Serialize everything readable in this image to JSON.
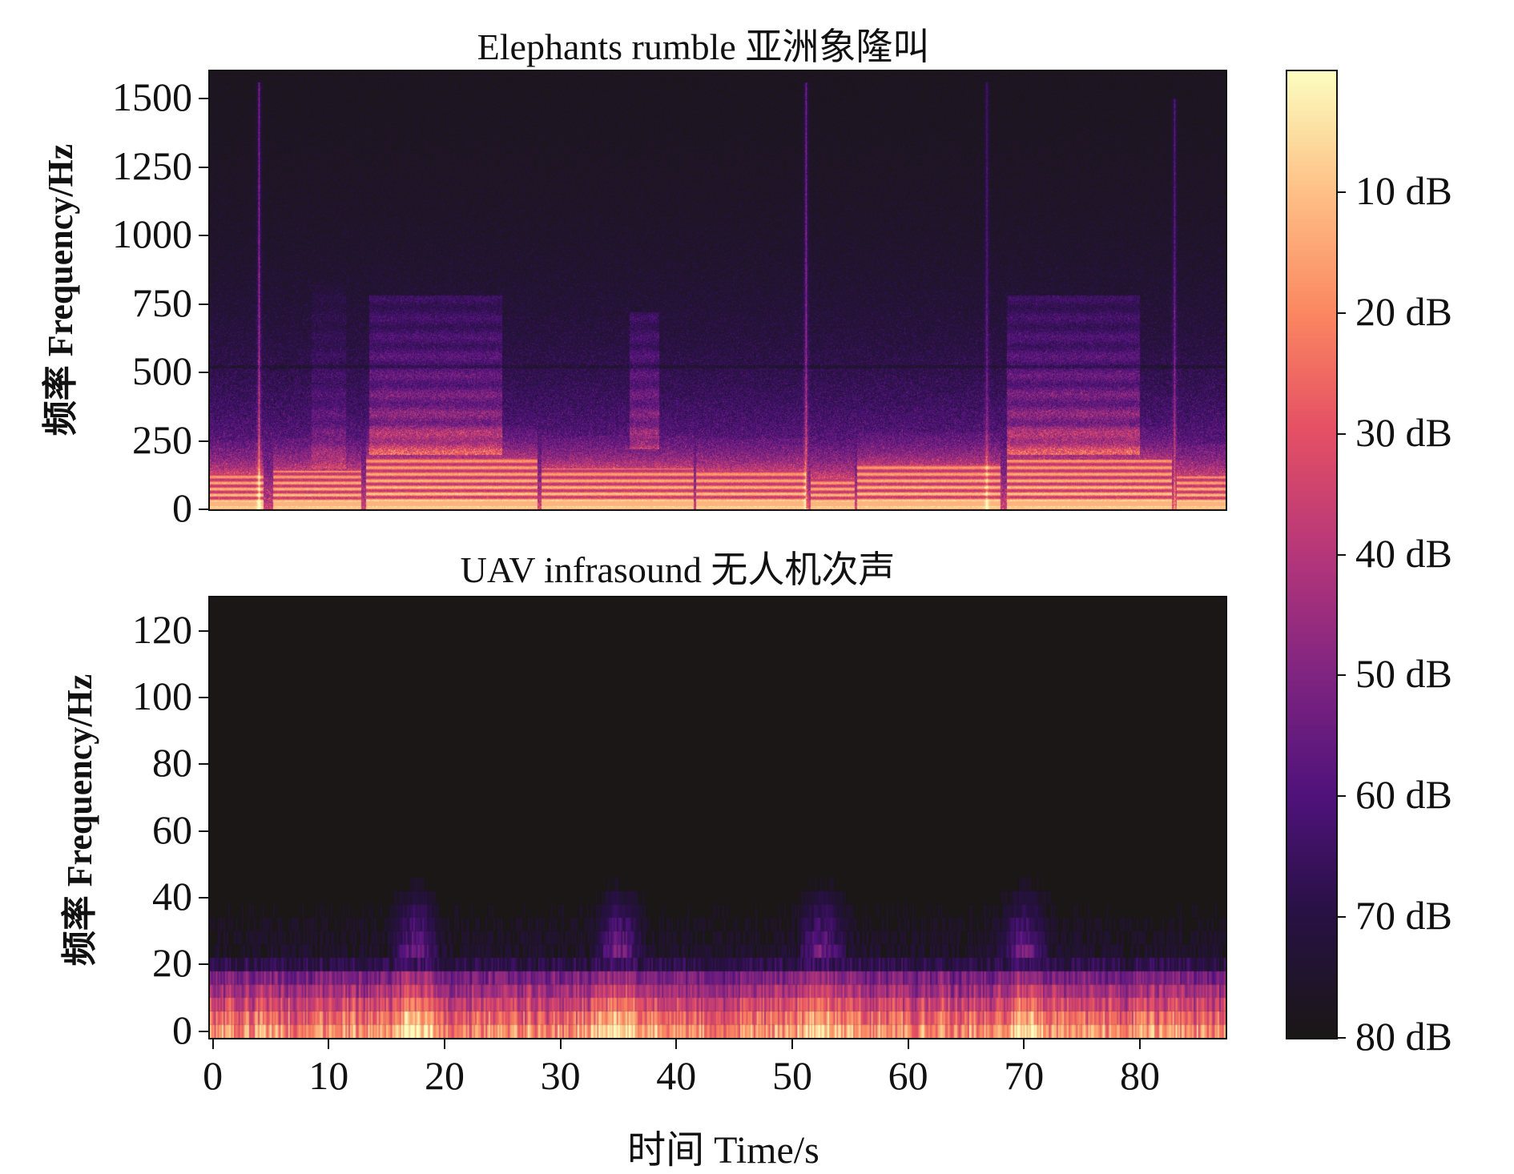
{
  "chart_data": [
    {
      "type": "heatmap",
      "title": "Elephants rumble 亚洲象隆叫",
      "ylabel": "频率 Frequency/Hz",
      "xlim": [
        -0.25,
        87.4
      ],
      "ylim": [
        0,
        1600
      ],
      "yticks": [
        0,
        250,
        500,
        750,
        1000,
        1250,
        1500
      ],
      "yticklabels": [
        "0",
        "250",
        "500",
        "750",
        "1000",
        "1250",
        "1500"
      ],
      "colormap": "magma",
      "calls": [
        {
          "start": -0.25,
          "end": 4.4,
          "fmax": 130,
          "spacing": 22
        },
        {
          "start": 5.2,
          "end": 12.8,
          "fmax": 140,
          "spacing": 22
        },
        {
          "start": 13.2,
          "end": 28.0,
          "fmax": 185,
          "spacing": 24
        },
        {
          "start": 28.4,
          "end": 41.5,
          "fmax": 150,
          "spacing": 24
        },
        {
          "start": 41.7,
          "end": 51.2,
          "fmax": 140,
          "spacing": 24
        },
        {
          "start": 51.6,
          "end": 55.4,
          "fmax": 110,
          "spacing": 22
        },
        {
          "start": 55.6,
          "end": 68.0,
          "fmax": 160,
          "spacing": 24
        },
        {
          "start": 68.5,
          "end": 82.8,
          "fmax": 180,
          "spacing": 24
        },
        {
          "start": 83.2,
          "end": 87.4,
          "fmax": 120,
          "spacing": 22
        }
      ],
      "formants": [
        {
          "t": [
            13.5,
            25
          ],
          "f": [
            200,
            780
          ],
          "level": 0.35
        },
        {
          "t": [
            36,
            38.5
          ],
          "f": [
            220,
            720
          ],
          "level": 0.3
        },
        {
          "t": [
            68.5,
            80
          ],
          "f": [
            200,
            780
          ],
          "level": 0.35
        },
        {
          "t": [
            8.5,
            11.5
          ],
          "f": [
            150,
            820
          ],
          "level": 0.15
        }
      ],
      "clicks": [
        {
          "t": 4.0,
          "fmax": 1560,
          "level": 0.45
        },
        {
          "t": 51.2,
          "fmax": 1560,
          "level": 0.45
        },
        {
          "t": 66.8,
          "fmax": 1560,
          "level": 0.3
        },
        {
          "t": 83.0,
          "fmax": 1500,
          "level": 0.35
        }
      ]
    },
    {
      "type": "heatmap",
      "title": "UAV infrasound 无人机次声",
      "ylabel": "频率 Frequency/Hz",
      "xlabel": "时间 Time/s",
      "xlim": [
        -0.25,
        87.4
      ],
      "ylim": [
        -2,
        130
      ],
      "yticks": [
        0,
        20,
        40,
        60,
        80,
        100,
        120
      ],
      "yticklabels": [
        "0",
        "20",
        "40",
        "60",
        "80",
        "100",
        "120"
      ],
      "xticks": [
        0,
        10,
        20,
        30,
        40,
        50,
        60,
        70,
        80
      ],
      "xticklabels": [
        "0",
        "10",
        "20",
        "30",
        "40",
        "50",
        "60",
        "70",
        "80"
      ],
      "colormap": "magma",
      "bin_hz": 4,
      "energy_peaks_s": [
        17.5,
        35,
        52.5,
        70
      ]
    },
    {
      "type": "colorbar",
      "range_db": [
        0,
        80
      ],
      "ticks": [
        10,
        20,
        30,
        40,
        50,
        60,
        70,
        80
      ],
      "ticklabels": [
        "10 dB",
        "20 dB",
        "30 dB",
        "40 dB",
        "50 dB",
        "60 dB",
        "70 dB",
        "80 dB"
      ],
      "colormap": "magma_r"
    }
  ]
}
